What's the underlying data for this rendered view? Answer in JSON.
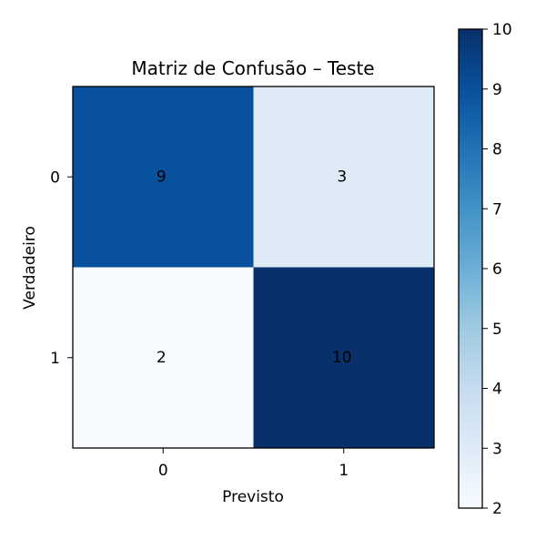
{
  "chart_data": {
    "type": "heatmap",
    "title": "Matriz de Confusão – Teste",
    "xlabel": "Previsto",
    "ylabel": "Verdadeiro",
    "x_categories": [
      "0",
      "1"
    ],
    "y_categories": [
      "0",
      "1"
    ],
    "values": [
      [
        9,
        3
      ],
      [
        2,
        10
      ]
    ],
    "colormap": "Blues",
    "colorbar": {
      "min": 2,
      "max": 10,
      "ticks": [
        2,
        3,
        4,
        5,
        6,
        7,
        8,
        9,
        10
      ]
    },
    "grid": false
  }
}
